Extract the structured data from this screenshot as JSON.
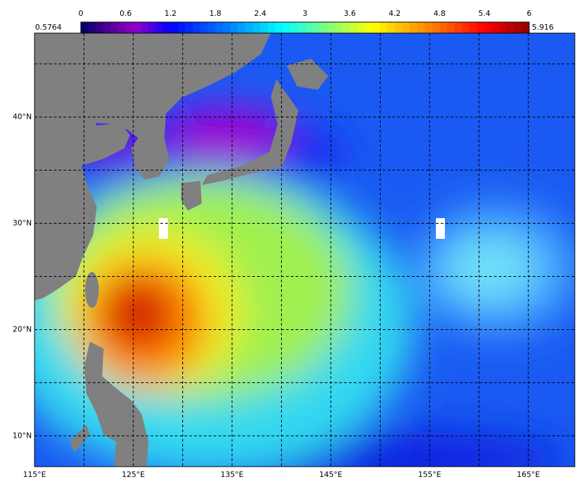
{
  "colorbar": {
    "clim": [
      0,
      6
    ],
    "ticks": [
      0,
      0.6,
      1.2,
      1.8,
      2.4,
      3,
      3.6,
      4.2,
      4.8,
      5.4,
      6
    ],
    "min_label": "0.5764",
    "max_label": "5.916"
  },
  "map": {
    "xlim": [
      115,
      169.7
    ],
    "ylim": [
      7.1,
      47.9
    ],
    "lon_labels": [
      {
        "value": 115,
        "label": "115°E"
      },
      {
        "value": 125,
        "label": "125°E"
      },
      {
        "value": 135,
        "label": "135°E"
      },
      {
        "value": 145,
        "label": "145°E"
      },
      {
        "value": 155,
        "label": "155°E"
      },
      {
        "value": 165,
        "label": "165°E"
      }
    ],
    "lat_labels": [
      {
        "value": 10,
        "label": "10°N"
      },
      {
        "value": 20,
        "label": "20°N"
      },
      {
        "value": 30,
        "label": "30°N"
      },
      {
        "value": 40,
        "label": "40°N"
      }
    ],
    "grid_lon": [
      120,
      125,
      130,
      135,
      140,
      145,
      150,
      155,
      160,
      165
    ],
    "grid_lat": [
      10,
      15,
      20,
      25,
      30,
      35,
      40,
      45
    ]
  }
}
